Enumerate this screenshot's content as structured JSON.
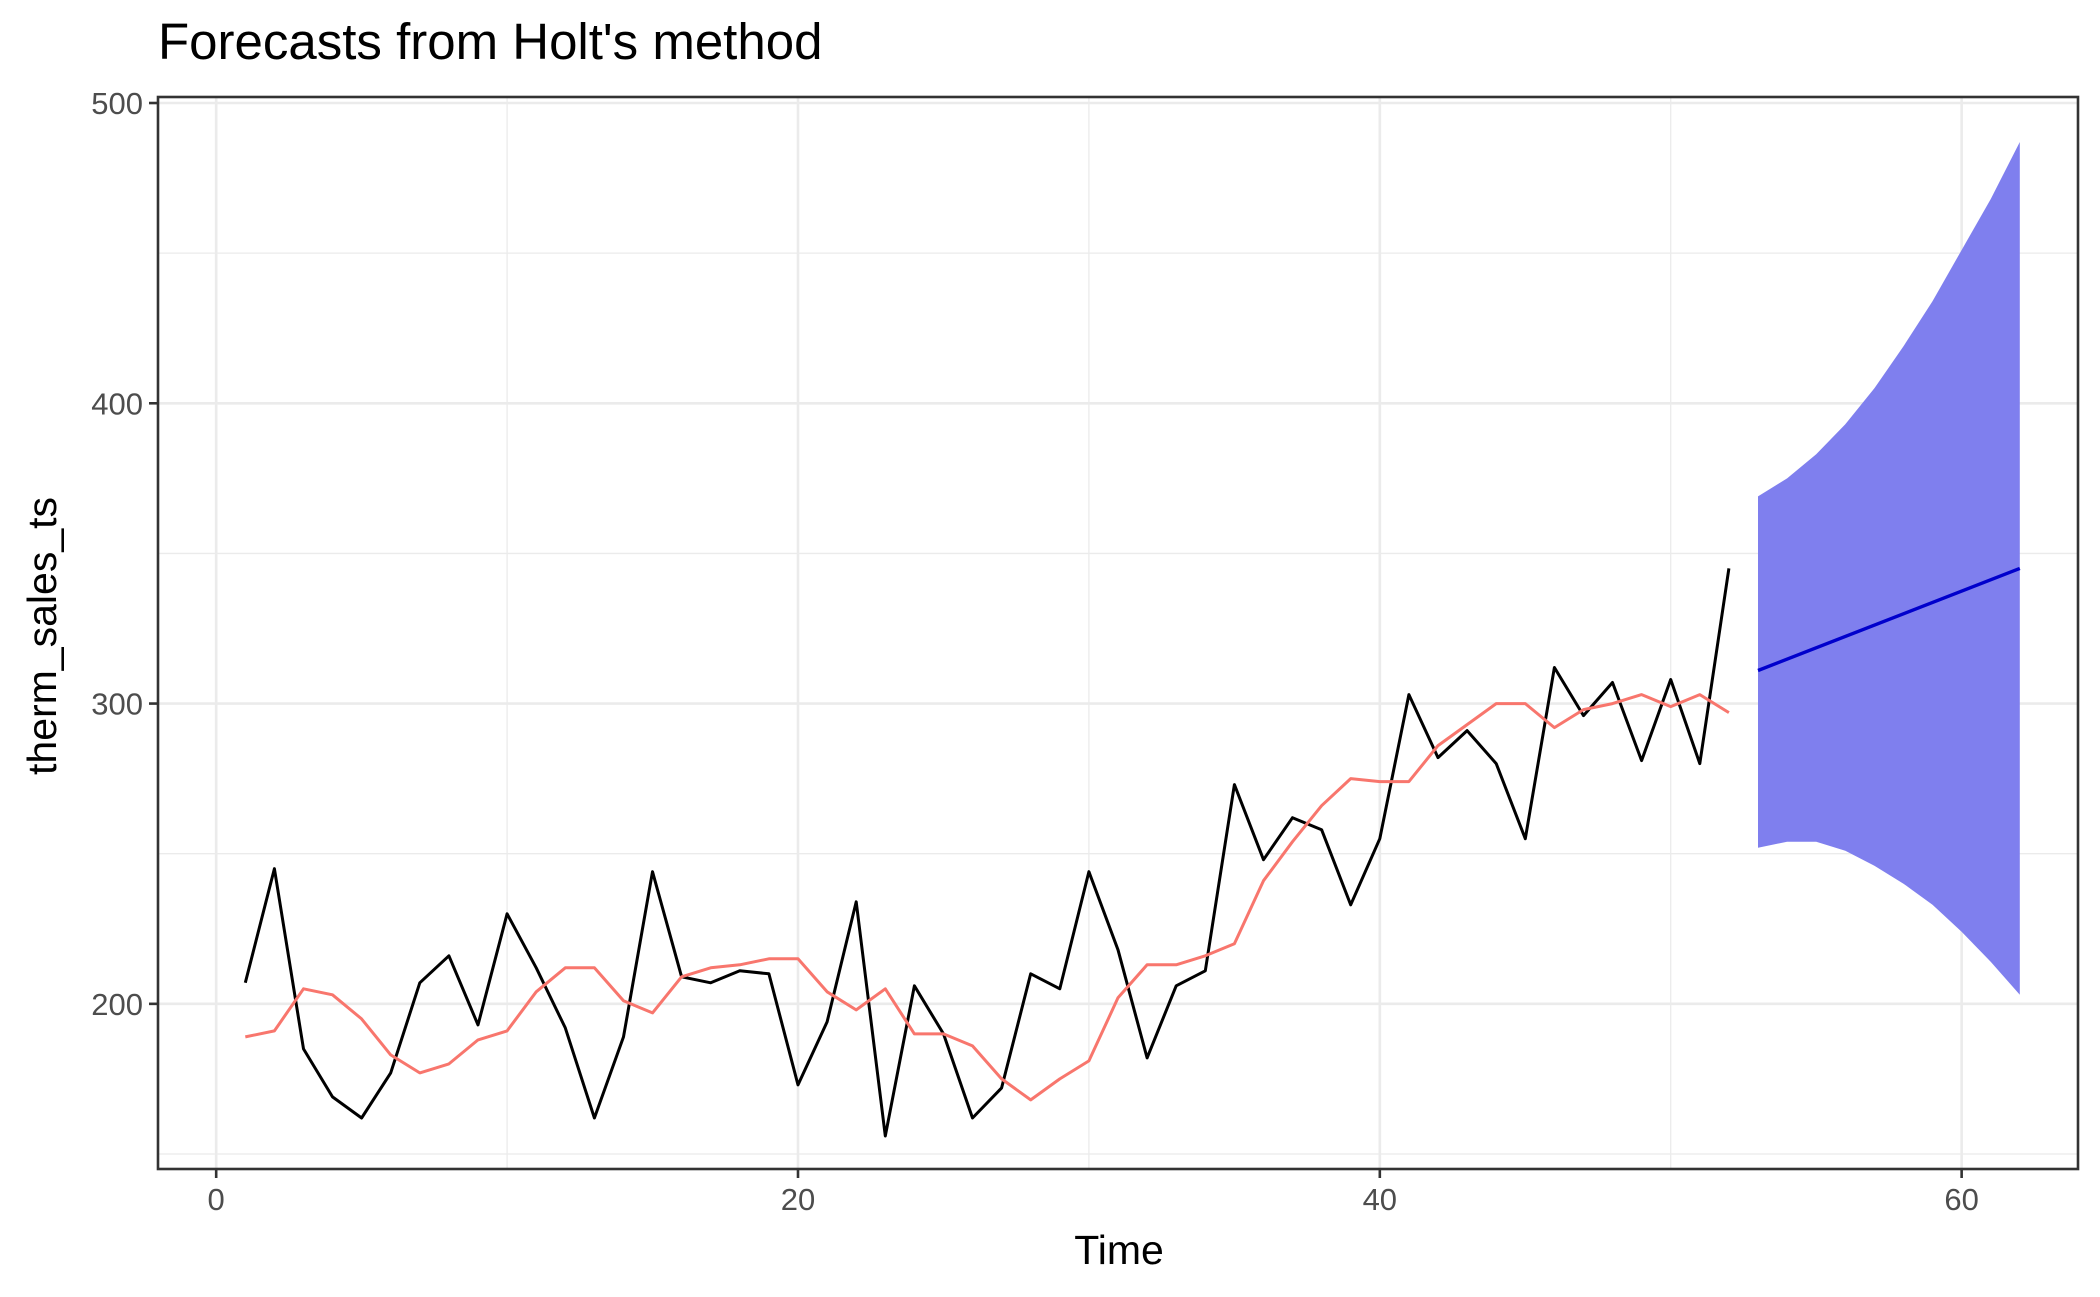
{
  "chart_data": {
    "type": "line",
    "title": "Forecasts from Holt's method",
    "xlabel": "Time",
    "ylabel": "therm_sales_ts",
    "xlim": [
      -2,
      64
    ],
    "ylim": [
      145,
      502
    ],
    "x_ticks": [
      0,
      20,
      40,
      60
    ],
    "y_ticks": [
      200,
      300,
      400,
      500
    ],
    "x_tick_labels": [
      "0",
      "20",
      "40",
      "60"
    ],
    "y_tick_labels": [
      "200",
      "300",
      "400",
      "500"
    ],
    "grid": true,
    "colors": {
      "observed": "#000000",
      "fitted": "#f8766d",
      "forecast": "#0000cc",
      "interval": "#7f7fee"
    },
    "series": [
      {
        "id": "observed",
        "x": [
          1,
          2,
          3,
          4,
          5,
          6,
          7,
          8,
          9,
          10,
          11,
          12,
          13,
          14,
          15,
          16,
          17,
          18,
          19,
          20,
          21,
          22,
          23,
          24,
          25,
          26,
          27,
          28,
          29,
          30,
          31,
          32,
          33,
          34,
          35,
          36,
          37,
          38,
          39,
          40,
          41,
          42,
          43,
          44,
          45,
          46,
          47,
          48,
          49,
          50,
          51,
          52
        ],
        "values": [
          207,
          245,
          185,
          169,
          162,
          177,
          207,
          216,
          193,
          230,
          212,
          192,
          162,
          189,
          244,
          209,
          207,
          211,
          210,
          173,
          194,
          234,
          156,
          206,
          190,
          162,
          172,
          210,
          205,
          244,
          218,
          182,
          206,
          211,
          273,
          248,
          262,
          258,
          233,
          255,
          303,
          282,
          291,
          280,
          255,
          312,
          296,
          307,
          281,
          308,
          280,
          345
        ]
      },
      {
        "id": "fitted",
        "x": [
          1,
          2,
          3,
          4,
          5,
          6,
          7,
          8,
          9,
          10,
          11,
          12,
          13,
          14,
          15,
          16,
          17,
          18,
          19,
          20,
          21,
          22,
          23,
          24,
          25,
          26,
          27,
          28,
          29,
          30,
          31,
          32,
          33,
          34,
          35,
          36,
          37,
          38,
          39,
          40,
          41,
          42,
          43,
          44,
          45,
          46,
          47,
          48,
          49,
          50,
          51,
          52
        ],
        "values": [
          189,
          191,
          205,
          203,
          195,
          183,
          177,
          180,
          188,
          191,
          204,
          212,
          212,
          201,
          197,
          209,
          212,
          213,
          215,
          215,
          204,
          198,
          205,
          190,
          190,
          186,
          175,
          168,
          175,
          181,
          202,
          213,
          213,
          216,
          220,
          241,
          254,
          266,
          275,
          274,
          274,
          286,
          293,
          300,
          300,
          292,
          298,
          300,
          303,
          299,
          303,
          297
        ]
      },
      {
        "id": "forecast",
        "x": [
          53,
          62
        ],
        "values": [
          311,
          345
        ]
      }
    ],
    "interval": {
      "x": [
        53,
        54,
        55,
        56,
        57,
        58,
        59,
        60,
        61,
        62
      ],
      "upper": [
        369,
        375,
        383,
        393,
        405,
        419,
        434,
        451,
        468,
        487
      ],
      "lower": [
        252,
        254,
        254,
        251,
        246,
        240,
        233,
        224,
        214,
        203
      ]
    }
  }
}
